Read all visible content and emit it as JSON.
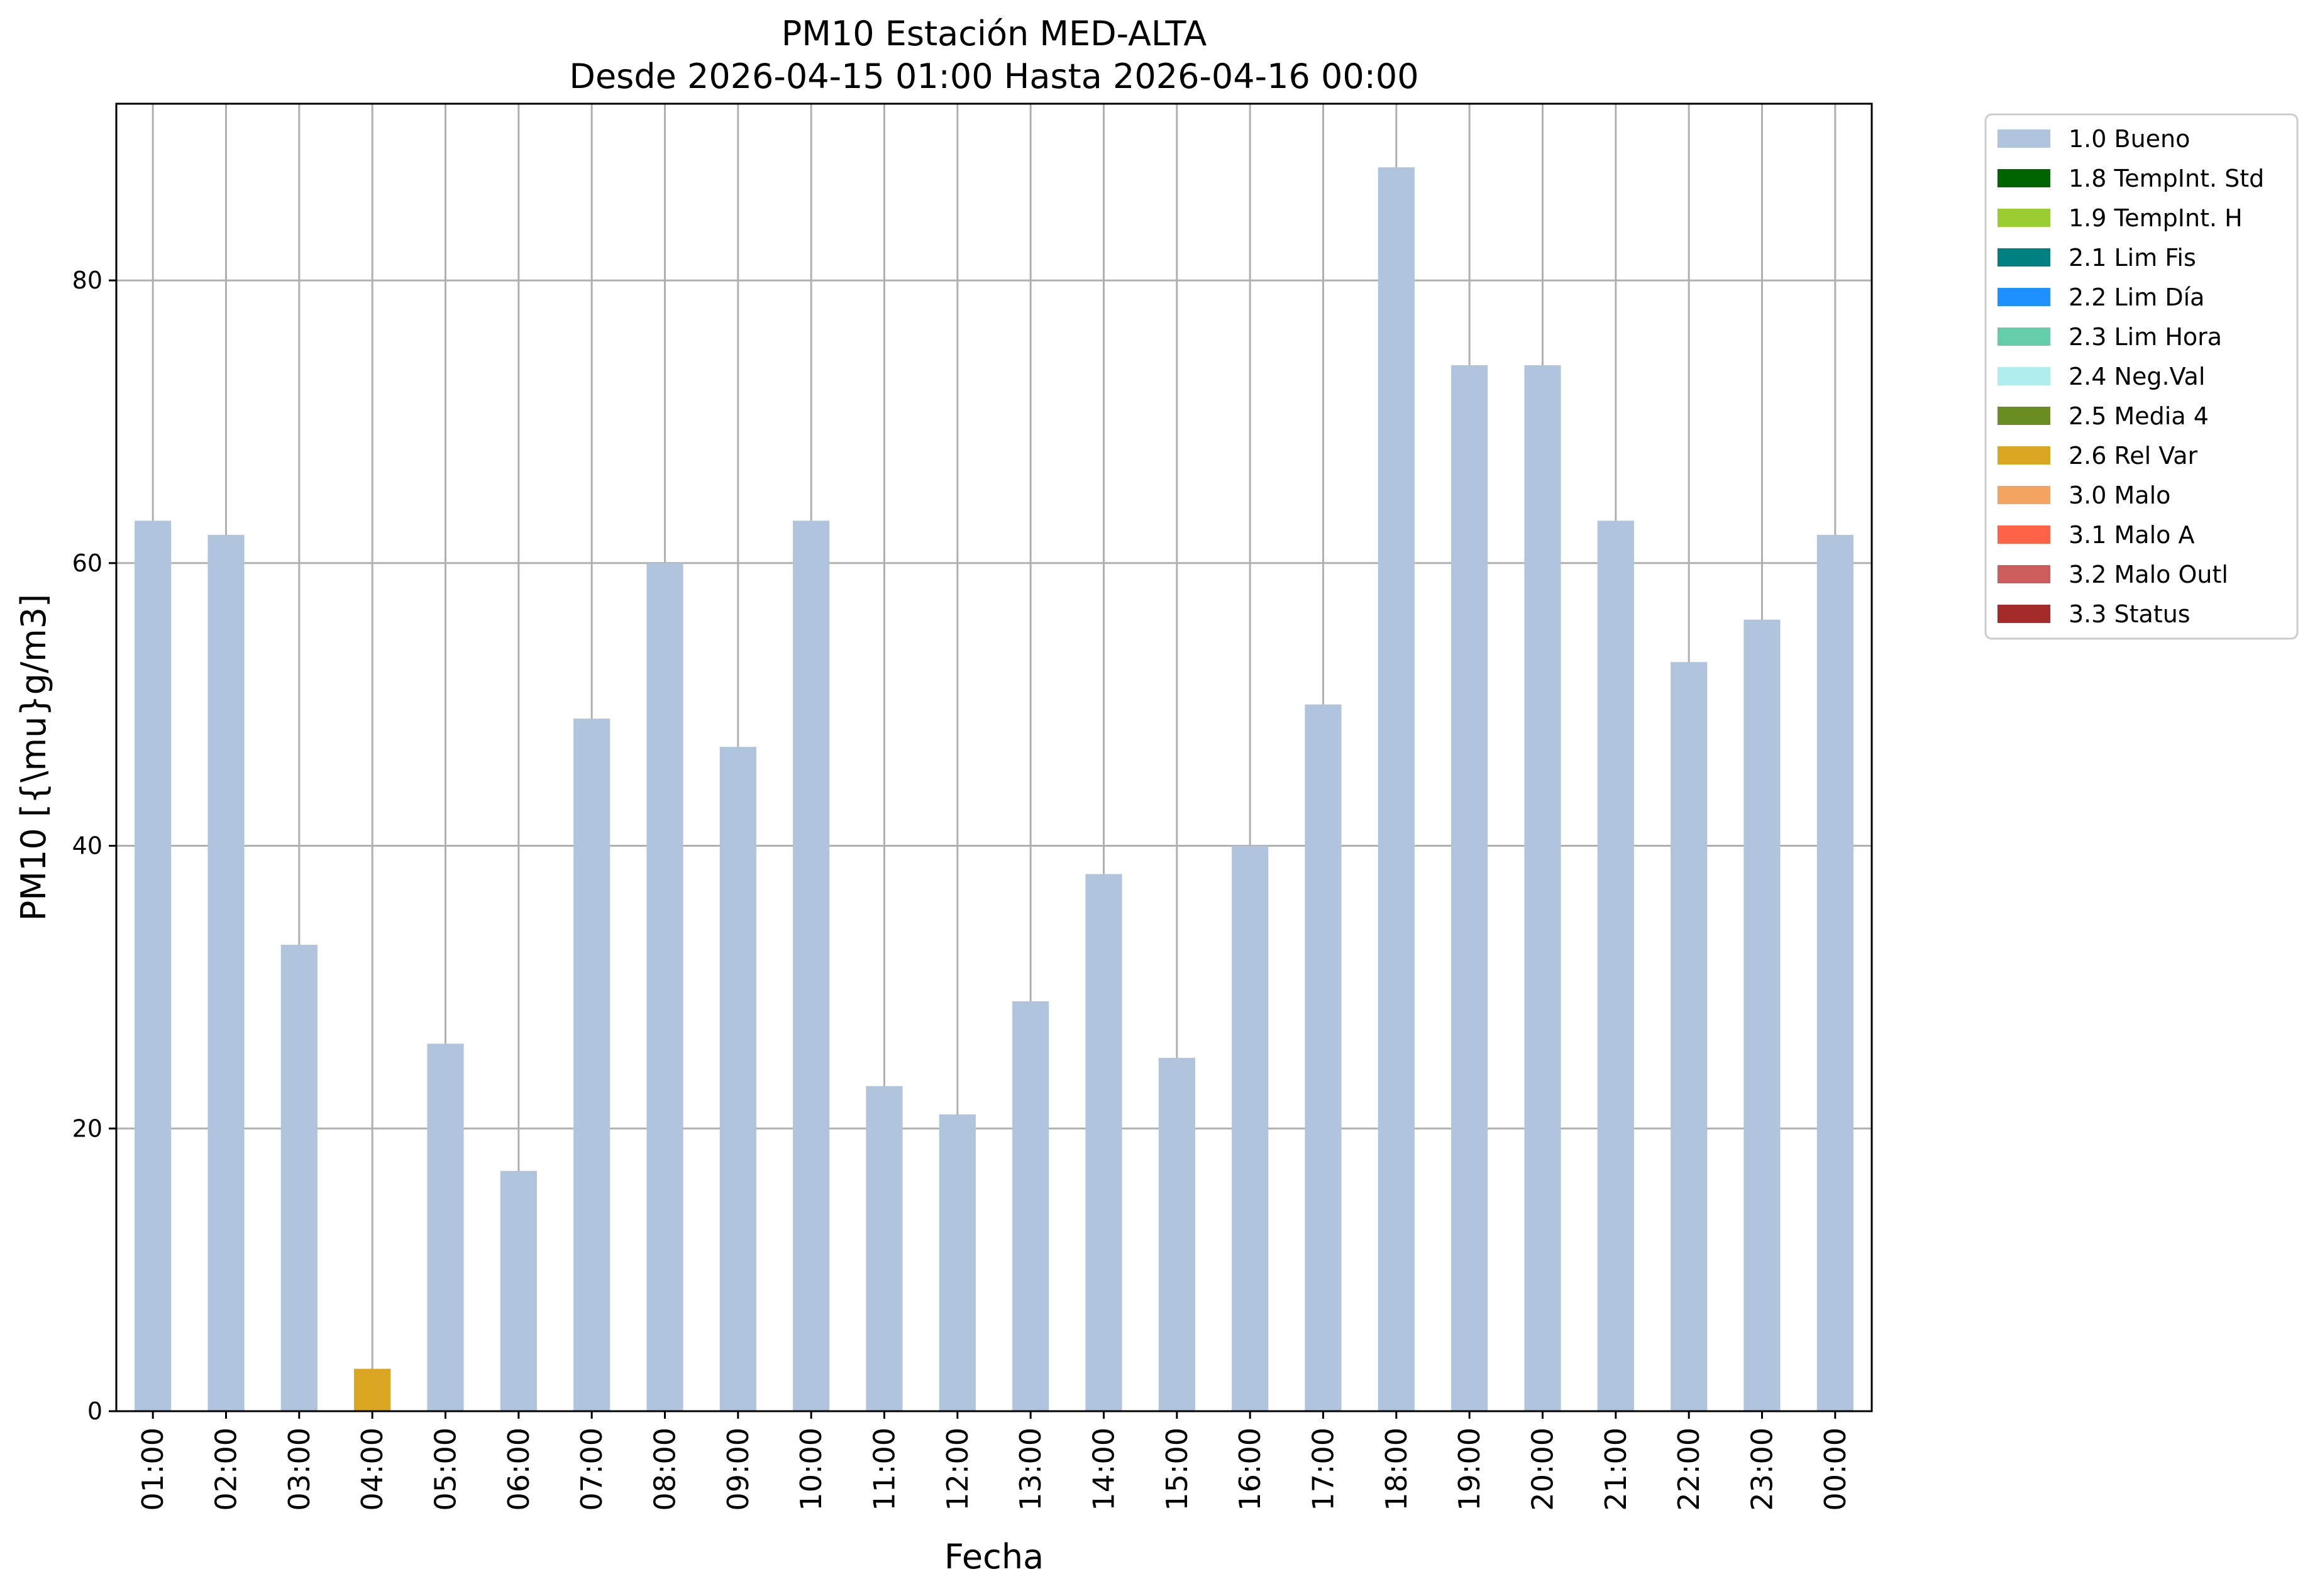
{
  "chart_data": {
    "type": "bar",
    "title": "PM10 Estación MED-ALTA",
    "subtitle": "Desde 2026-04-15 01:00 Hasta 2026-04-16 00:00",
    "xlabel": "Fecha",
    "ylabel": "PM10 [{\\mu}g/m3]",
    "ylim": [
      0,
      92.5
    ],
    "yticks": [
      0,
      20,
      40,
      60,
      80
    ],
    "grid": true,
    "legend_position": "outside-right",
    "categories": [
      "01:00",
      "02:00",
      "03:00",
      "04:00",
      "05:00",
      "06:00",
      "07:00",
      "08:00",
      "09:00",
      "10:00",
      "11:00",
      "12:00",
      "13:00",
      "14:00",
      "15:00",
      "16:00",
      "17:00",
      "18:00",
      "19:00",
      "20:00",
      "21:00",
      "22:00",
      "23:00",
      "00:00"
    ],
    "series": [
      {
        "name": "1.0 Bueno",
        "color": "#b0c4de",
        "values": [
          63,
          62,
          33,
          0,
          26,
          17,
          49,
          60,
          47,
          63,
          23,
          21,
          29,
          38,
          25,
          40,
          50,
          88,
          74,
          74,
          63,
          53,
          56,
          62
        ]
      },
      {
        "name": "1.8 TempInt. Std",
        "color": "#006400",
        "values": [
          0,
          0,
          0,
          0,
          0,
          0,
          0,
          0,
          0,
          0,
          0,
          0,
          0,
          0,
          0,
          0,
          0,
          0,
          0,
          0,
          0,
          0,
          0,
          0
        ]
      },
      {
        "name": "1.9 TempInt. H",
        "color": "#9acd32",
        "values": [
          0,
          0,
          0,
          0,
          0,
          0,
          0,
          0,
          0,
          0,
          0,
          0,
          0,
          0,
          0,
          0,
          0,
          0,
          0,
          0,
          0,
          0,
          0,
          0
        ]
      },
      {
        "name": "2.1 Lim Fis",
        "color": "#008080",
        "values": [
          0,
          0,
          0,
          0,
          0,
          0,
          0,
          0,
          0,
          0,
          0,
          0,
          0,
          0,
          0,
          0,
          0,
          0,
          0,
          0,
          0,
          0,
          0,
          0
        ]
      },
      {
        "name": "2.2 Lim Día",
        "color": "#1e90ff",
        "values": [
          0,
          0,
          0,
          0,
          0,
          0,
          0,
          0,
          0,
          0,
          0,
          0,
          0,
          0,
          0,
          0,
          0,
          0,
          0,
          0,
          0,
          0,
          0,
          0
        ]
      },
      {
        "name": "2.3 Lim Hora",
        "color": "#66cdaa",
        "values": [
          0,
          0,
          0,
          0,
          0,
          0,
          0,
          0,
          0,
          0,
          0,
          0,
          0,
          0,
          0,
          0,
          0,
          0,
          0,
          0,
          0,
          0,
          0,
          0
        ]
      },
      {
        "name": "2.4 Neg.Val",
        "color": "#afeeee",
        "values": [
          0,
          0,
          0,
          0,
          0,
          0,
          0,
          0,
          0,
          0,
          0,
          0,
          0,
          0,
          0,
          0,
          0,
          0,
          0,
          0,
          0,
          0,
          0,
          0
        ]
      },
      {
        "name": "2.5 Media 4",
        "color": "#6b8e23",
        "values": [
          0,
          0,
          0,
          0,
          0,
          0,
          0,
          0,
          0,
          0,
          0,
          0,
          0,
          0,
          0,
          0,
          0,
          0,
          0,
          0,
          0,
          0,
          0,
          0
        ]
      },
      {
        "name": "2.6 Rel Var",
        "color": "#daa520",
        "values": [
          0,
          0,
          0,
          3,
          0,
          0,
          0,
          0,
          0,
          0,
          0,
          0,
          0,
          0,
          0,
          0,
          0,
          0,
          0,
          0,
          0,
          0,
          0,
          0
        ]
      },
      {
        "name": "3.0 Malo",
        "color": "#f4a460",
        "values": [
          0,
          0,
          0,
          0,
          0,
          0,
          0,
          0,
          0,
          0,
          0,
          0,
          0,
          0,
          0,
          0,
          0,
          0,
          0,
          0,
          0,
          0,
          0,
          0
        ]
      },
      {
        "name": "3.1 Malo A",
        "color": "#ff6347",
        "values": [
          0,
          0,
          0,
          0,
          0,
          0,
          0,
          0,
          0,
          0,
          0,
          0,
          0,
          0,
          0,
          0,
          0,
          0,
          0,
          0,
          0,
          0,
          0,
          0
        ]
      },
      {
        "name": "3.2 Malo Outl",
        "color": "#cd5c5c",
        "values": [
          0,
          0,
          0,
          0,
          0,
          0,
          0,
          0,
          0,
          0,
          0,
          0,
          0,
          0,
          0,
          0,
          0,
          0,
          0,
          0,
          0,
          0,
          0,
          0
        ]
      },
      {
        "name": "3.3 Status",
        "color": "#a52a2a",
        "values": [
          0,
          0,
          0,
          0,
          0,
          0,
          0,
          0,
          0,
          0,
          0,
          0,
          0,
          0,
          0,
          0,
          0,
          0,
          0,
          0,
          0,
          0,
          0,
          0
        ]
      }
    ],
    "grid_color": "#b0b0b0"
  }
}
